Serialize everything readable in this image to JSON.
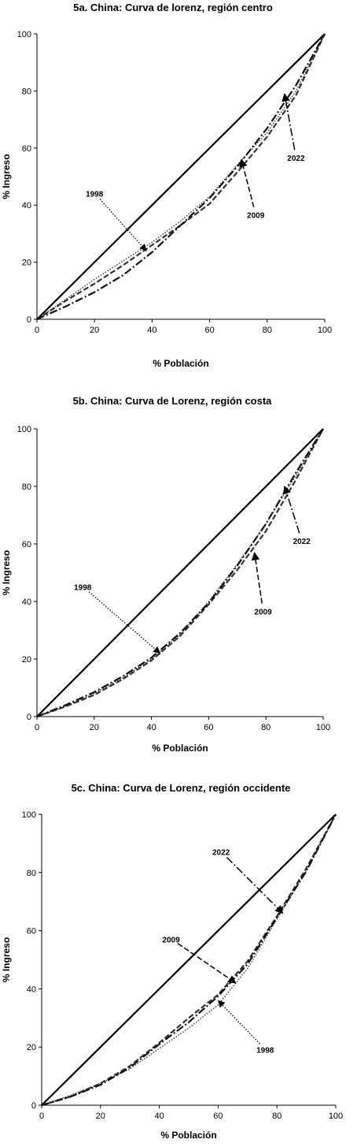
{
  "chart_data": [
    {
      "type": "line",
      "title": "5a. China: Curva de lorenz, región centro",
      "xlabel": "% Población",
      "ylabel": "% Ingreso",
      "xlim": [
        0,
        100
      ],
      "ylim": [
        0,
        100
      ],
      "xticks": [
        0,
        20,
        40,
        60,
        80,
        100
      ],
      "yticks": [
        0,
        20,
        40,
        60,
        80,
        100
      ],
      "grid": false,
      "series": [
        {
          "name": "",
          "style": "solid",
          "x": [
            0,
            100
          ],
          "y": [
            0,
            100
          ]
        },
        {
          "name": "1998",
          "style": "dotted",
          "x": [
            0,
            10,
            20,
            30,
            40,
            50,
            60,
            70,
            80,
            90,
            100
          ],
          "y": [
            0,
            7,
            14,
            20.5,
            27,
            34.5,
            43,
            54.5,
            65.5,
            80,
            100
          ]
        },
        {
          "name": "2009",
          "style": "dashed",
          "x": [
            0,
            10,
            20,
            30,
            40,
            50,
            60,
            70,
            80,
            90,
            100
          ],
          "y": [
            0,
            6.5,
            12.5,
            19,
            26,
            33,
            40.5,
            52,
            64,
            78.5,
            100
          ]
        },
        {
          "name": "2022",
          "style": "dashdot",
          "x": [
            0,
            10,
            20,
            30,
            40,
            50,
            60,
            70,
            80,
            90,
            100
          ],
          "y": [
            0,
            4.5,
            9.5,
            15.5,
            23.5,
            33,
            42.5,
            54,
            67,
            82,
            100
          ]
        }
      ],
      "annotations": [
        {
          "text": "1998",
          "x": 20,
          "y": 43,
          "arrow_to": [
            38,
            24
          ],
          "style": "dotted"
        },
        {
          "text": "2009",
          "x": 76,
          "y": 35.5,
          "arrow_to": [
            71,
            56
          ],
          "style": "dashed"
        },
        {
          "text": "2022",
          "x": 90,
          "y": 55.5,
          "arrow_to": [
            86,
            79
          ],
          "style": "dashdot"
        }
      ]
    },
    {
      "type": "line",
      "title": "5b. China: Curva de Lorenz, región costa",
      "xlabel": "% Población",
      "ylabel": "% Ingreso",
      "xlim": [
        0,
        100
      ],
      "ylim": [
        0,
        100
      ],
      "xticks": [
        0,
        20,
        40,
        60,
        80,
        100
      ],
      "yticks": [
        0,
        20,
        40,
        60,
        80,
        100
      ],
      "grid": false,
      "series": [
        {
          "name": "",
          "style": "solid",
          "x": [
            0,
            100
          ],
          "y": [
            0,
            100
          ]
        },
        {
          "name": "1998",
          "style": "dotted",
          "x": [
            0,
            10,
            20,
            30,
            40,
            50,
            60,
            70,
            80,
            90,
            100
          ],
          "y": [
            0,
            3.5,
            8,
            13.5,
            20,
            28.5,
            40,
            53,
            67,
            83,
            100
          ]
        },
        {
          "name": "2009",
          "style": "dashed",
          "x": [
            0,
            10,
            20,
            30,
            40,
            50,
            60,
            70,
            80,
            90,
            100
          ],
          "y": [
            0,
            3.5,
            7.5,
            13,
            19.5,
            28,
            39,
            51,
            64.5,
            81.5,
            100
          ]
        },
        {
          "name": "2022",
          "style": "dashdot",
          "x": [
            0,
            10,
            20,
            30,
            40,
            50,
            60,
            70,
            80,
            90,
            100
          ],
          "y": [
            0,
            4,
            8.5,
            14,
            20.5,
            29,
            39.5,
            52.5,
            67,
            84,
            100
          ]
        }
      ],
      "annotations": [
        {
          "text": "1998",
          "x": 16,
          "y": 44,
          "arrow_to": [
            43,
            22
          ],
          "style": "dotted"
        },
        {
          "text": "2009",
          "x": 79,
          "y": 35.5,
          "arrow_to": [
            76,
            57
          ],
          "style": "dashed"
        },
        {
          "text": "2022",
          "x": 92.5,
          "y": 60,
          "arrow_to": [
            86.5,
            80
          ],
          "style": "dashdot"
        }
      ]
    },
    {
      "type": "line",
      "title": "5c. China: Curva de Lorenz, región occidente",
      "xlabel": "% Población",
      "ylabel": "% Ingreso",
      "xlim": [
        0,
        100
      ],
      "ylim": [
        0,
        100
      ],
      "xticks": [
        0,
        20,
        40,
        60,
        80,
        100
      ],
      "yticks": [
        0,
        20,
        40,
        60,
        80,
        100
      ],
      "grid": false,
      "series": [
        {
          "name": "",
          "style": "solid",
          "x": [
            0,
            100
          ],
          "y": [
            0,
            100
          ]
        },
        {
          "name": "1998",
          "style": "dotted",
          "x": [
            0,
            10,
            20,
            30,
            40,
            50,
            60,
            70,
            80,
            90,
            100
          ],
          "y": [
            0,
            3.5,
            7.5,
            12.5,
            19.5,
            26.5,
            34.5,
            47,
            64,
            80.5,
            100
          ]
        },
        {
          "name": "2009",
          "style": "dashed",
          "x": [
            0,
            10,
            20,
            30,
            40,
            50,
            60,
            70,
            80,
            90,
            100
          ],
          "y": [
            0,
            3,
            7.5,
            13.5,
            21.5,
            30,
            38,
            49.5,
            65,
            81.5,
            100
          ]
        },
        {
          "name": "2022",
          "style": "dashdot",
          "x": [
            0,
            10,
            20,
            30,
            40,
            50,
            60,
            70,
            80,
            90,
            100
          ],
          "y": [
            0,
            3,
            7,
            13,
            21,
            28.5,
            37.5,
            48.5,
            64.5,
            80.5,
            100
          ]
        }
      ],
      "annotations": [
        {
          "text": "2022",
          "x": 61,
          "y": 86,
          "arrow_to": [
            82,
            66
          ],
          "style": "dashdot"
        },
        {
          "text": "2009",
          "x": 44,
          "y": 56,
          "arrow_to": [
            66,
            42
          ],
          "style": "dashed"
        },
        {
          "text": "1998",
          "x": 76,
          "y": 18,
          "arrow_to": [
            60,
            36
          ],
          "style": "dotted"
        }
      ]
    }
  ]
}
